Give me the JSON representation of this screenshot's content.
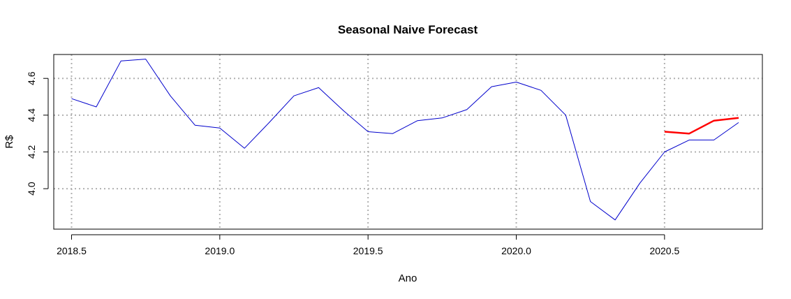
{
  "chart_data": {
    "type": "line",
    "title": "Seasonal Naive Forecast",
    "xlabel": "Ano",
    "ylabel": "R$",
    "xlim": [
      2018.44,
      2020.83
    ],
    "ylim": [
      3.78,
      4.73
    ],
    "x_ticks": [
      2018.5,
      2019.0,
      2019.5,
      2020.0,
      2020.5
    ],
    "x_tick_labels": [
      "2018.5",
      "2019.0",
      "2019.5",
      "2020.0",
      "2020.5"
    ],
    "y_ticks": [
      4.0,
      4.2,
      4.4,
      4.6
    ],
    "y_tick_labels": [
      "4.0",
      "4.2",
      "4.4",
      "4.6"
    ],
    "grid": true,
    "series": [
      {
        "color": "#0000cc",
        "x": [
          2018.5,
          2018.5833,
          2018.6667,
          2018.75,
          2018.8333,
          2018.9167,
          2019.0,
          2019.0833,
          2019.1667,
          2019.25,
          2019.3333,
          2019.4167,
          2019.5,
          2019.5833,
          2019.6667,
          2019.75,
          2019.8333,
          2019.9167,
          2020.0,
          2020.0833,
          2020.1667,
          2020.25,
          2020.3333,
          2020.4167,
          2020.5,
          2020.5833,
          2020.6667,
          2020.75
        ],
        "values": [
          4.49,
          4.445,
          4.695,
          4.705,
          4.505,
          4.345,
          4.33,
          4.22,
          4.36,
          4.505,
          4.55,
          4.425,
          4.31,
          4.3,
          4.37,
          4.385,
          4.43,
          4.555,
          4.58,
          4.535,
          4.4,
          3.93,
          3.83,
          4.03,
          4.2,
          4.265,
          4.265,
          4.36
        ]
      },
      {
        "color": "#ff0000",
        "x": [
          2020.5,
          2020.5833,
          2020.6667,
          2020.75
        ],
        "values": [
          4.31,
          4.3,
          4.37,
          4.385
        ]
      }
    ]
  }
}
